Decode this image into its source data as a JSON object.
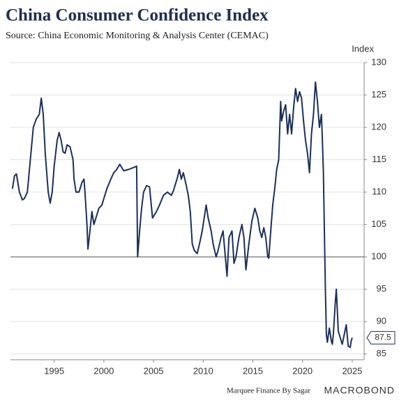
{
  "chart_data": {
    "type": "line",
    "title": "China Consumer Confidence Index",
    "subtitle": "Source: China Economic Monitoring & Analysis Center (CEMAC)",
    "y_axis_label": "Index",
    "footer": "Marquee Finance By Sagar",
    "brand": "MACROBOND",
    "xlim": [
      1990.6,
      2026.2
    ],
    "ylim": [
      84.1,
      130
    ],
    "xticks": [
      1995,
      2000,
      2005,
      2010,
      2015,
      2020,
      2025
    ],
    "yticks": [
      85,
      90,
      95,
      100,
      105,
      110,
      115,
      120,
      125,
      130
    ],
    "grid": true,
    "reference_line": 100,
    "series": [
      {
        "name": "China Consumer Confidence Index",
        "color": "#1c2f5a",
        "x": [
          1990.8,
          1991.0,
          1991.2,
          1991.5,
          1991.8,
          1992.0,
          1992.3,
          1992.6,
          1992.9,
          1993.2,
          1993.5,
          1993.7,
          1993.9,
          1994.1,
          1994.4,
          1994.6,
          1994.8,
          1995.0,
          1995.3,
          1995.5,
          1995.7,
          1995.9,
          1996.1,
          1996.3,
          1996.6,
          1996.9,
          1997.0,
          1997.2,
          1997.5,
          1997.8,
          1998.0,
          1998.1,
          1998.3,
          1998.4,
          1998.6,
          1998.8,
          1999.0,
          1999.3,
          1999.5,
          1999.8,
          2000.0,
          2000.3,
          2000.7,
          2001.0,
          2001.3,
          2001.6,
          2002.0,
          2002.5,
          2003.0,
          2003.3,
          2003.4,
          2003.6,
          2003.8,
          2004.0,
          2004.3,
          2004.6,
          2004.9,
          2005.3,
          2005.6,
          2006.0,
          2006.4,
          2006.8,
          2007.0,
          2007.4,
          2007.6,
          2007.8,
          2008.0,
          2008.3,
          2008.5,
          2008.7,
          2008.9,
          2009.1,
          2009.4,
          2009.7,
          2009.9,
          2010.1,
          2010.3,
          2010.5,
          2010.8,
          2011.0,
          2011.3,
          2011.5,
          2011.8,
          2012.0,
          2012.2,
          2012.4,
          2012.6,
          2012.9,
          2013.1,
          2013.3,
          2013.6,
          2013.9,
          2014.1,
          2014.3,
          2014.6,
          2014.9,
          2015.2,
          2015.5,
          2015.7,
          2015.9,
          2016.1,
          2016.3,
          2016.5,
          2016.6,
          2016.8,
          2017.0,
          2017.2,
          2017.4,
          2017.6,
          2017.7,
          2017.8,
          2017.9,
          2018.1,
          2018.3,
          2018.5,
          2018.7,
          2018.9,
          2019.1,
          2019.3,
          2019.5,
          2019.7,
          2019.9,
          2020.1,
          2020.3,
          2020.5,
          2020.7,
          2020.9,
          2021.1,
          2021.3,
          2021.5,
          2021.7,
          2021.9,
          2022.0,
          2022.1,
          2022.3,
          2022.4,
          2022.5,
          2022.7,
          2022.9,
          2023.0,
          2023.1,
          2023.3,
          2023.4,
          2023.6,
          2023.8,
          2024.0,
          2024.2,
          2024.4,
          2024.6,
          2024.8,
          2024.9,
          2025.0
        ],
        "values": [
          110.5,
          112.5,
          112.8,
          110,
          108.8,
          109,
          110,
          115,
          120,
          121.3,
          122,
          124.5,
          122,
          116,
          110,
          108.3,
          110,
          114,
          118,
          119.2,
          118,
          116.2,
          116,
          117.3,
          117,
          115,
          112,
          110,
          110,
          111.5,
          112,
          110,
          105,
          101.2,
          104,
          107,
          105,
          106.5,
          107.5,
          108,
          109,
          110.5,
          112,
          113,
          113.5,
          114.3,
          113.3,
          113.5,
          113.8,
          114,
          100,
          104,
          107.5,
          110,
          111,
          110.8,
          106,
          107,
          108,
          109.5,
          110,
          109.5,
          110.2,
          112.2,
          113.5,
          112,
          113,
          111,
          109.5,
          107,
          102,
          101,
          100.5,
          102.5,
          104,
          106,
          108,
          106,
          104,
          102,
          100,
          101,
          103,
          104,
          100.5,
          97,
          103,
          104,
          99,
          100,
          103,
          105,
          103,
          98,
          102,
          105.5,
          107.5,
          106,
          104,
          103,
          104.5,
          103,
          100,
          99.8,
          104,
          108,
          110.5,
          113.5,
          115,
          119.5,
          124,
          121,
          122.5,
          123.5,
          119,
          122,
          119,
          123,
          126,
          124,
          125.5,
          124.5,
          121,
          118,
          116,
          113,
          119,
          122,
          127,
          124,
          120,
          122,
          118,
          113,
          95,
          88,
          86.8,
          89,
          87,
          86.5,
          88,
          93,
          95,
          88.5,
          87.5,
          86.5,
          88,
          89.5,
          86.2,
          86,
          87,
          87.5
        ]
      }
    ]
  }
}
